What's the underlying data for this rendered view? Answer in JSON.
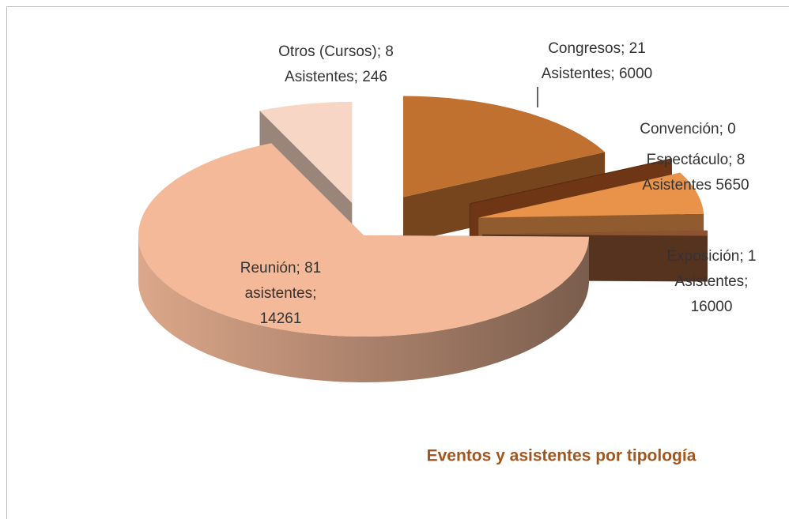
{
  "chart_data": {
    "type": "pie3d",
    "title": "Eventos y asistentes por tipología",
    "labels": [
      [
        "Congresos; 21",
        "Asistentes; 6000"
      ],
      [
        "Convención; 0"
      ],
      [
        "Espectáculo; 8",
        "Asistentes 5650"
      ],
      [
        "Exposición; 1",
        "Asistentes;",
        "16000"
      ],
      [
        "Reunión; 81",
        "asistentes;",
        "14261"
      ],
      [
        "Otros (Cursos); 8",
        "Asistentes; 246"
      ]
    ],
    "values": [
      21,
      0,
      8,
      1,
      81,
      8
    ],
    "colors": [
      "#c0702f",
      "#7a3c17",
      "#e8924a",
      "#8b5332",
      "#f4b999",
      "#f8d6c6"
    ]
  }
}
